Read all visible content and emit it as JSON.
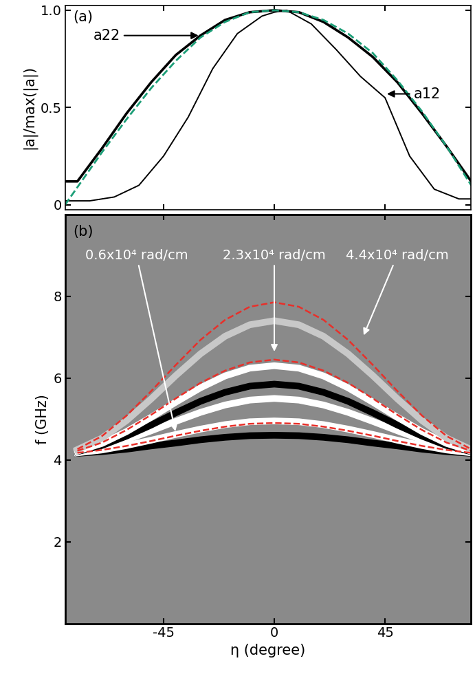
{
  "chart_data": [
    {
      "type": "line",
      "title": "(a)",
      "ylabel": "|a|/max(|a|)",
      "xlim": [
        -85,
        80
      ],
      "ylim": [
        -0.025,
        1.025
      ],
      "xticks": [
        -45,
        0,
        45
      ],
      "yticks": [
        0,
        0.5,
        1.0
      ],
      "tick_labels": "y",
      "series": [
        {
          "x": [
            -85,
            -80,
            -70,
            -60,
            -50,
            -40,
            -30,
            -20,
            -10,
            0,
            10,
            20,
            30,
            40,
            50,
            60,
            70,
            80
          ],
          "values": [
            0.12,
            0.12,
            0.29,
            0.47,
            0.63,
            0.77,
            0.87,
            0.95,
            0.99,
            1.0,
            0.99,
            0.94,
            0.86,
            0.76,
            0.63,
            0.47,
            0.3,
            0.12
          ],
          "color": "#000000",
          "line_style": "solid"
        },
        {
          "x": [
            -85,
            -75,
            -65,
            -55,
            -45,
            -35,
            -25,
            -15,
            -5,
            0,
            5,
            15,
            25,
            35,
            45,
            50,
            55,
            65,
            75,
            80
          ],
          "values": [
            0.02,
            0.02,
            0.04,
            0.1,
            0.25,
            0.45,
            0.7,
            0.88,
            0.97,
            0.99,
            1.0,
            0.93,
            0.8,
            0.66,
            0.55,
            0.4,
            0.25,
            0.08,
            0.03,
            0.03
          ],
          "color": "#000000",
          "line_style": "solid"
        },
        {
          "x": [
            -85,
            -80,
            -70,
            -60,
            -50,
            -40,
            -30,
            -20,
            -10,
            0,
            10,
            20,
            30,
            40,
            50,
            60,
            70,
            80
          ],
          "values": [
            0.0,
            0.09,
            0.27,
            0.44,
            0.6,
            0.74,
            0.86,
            0.94,
            0.99,
            1.0,
            0.99,
            0.95,
            0.88,
            0.78,
            0.64,
            0.48,
            0.3,
            0.1
          ],
          "color": "#1b9e77",
          "line_style": "dashed"
        }
      ],
      "annotations": [
        {
          "text": "a22",
          "x": -30,
          "y": 0.87,
          "text_x": -68,
          "text_y": 0.87
        },
        {
          "text": "a12",
          "x": 45,
          "y": 0.57,
          "text_x": 62,
          "text_y": 0.57
        }
      ]
    },
    {
      "type": "spectrum",
      "title": "(b)",
      "xlabel": "η (degree)",
      "ylabel": "f (GHz)",
      "xlim": [
        -85,
        80
      ],
      "ylim": [
        0,
        10
      ],
      "xticks": [
        -45,
        0,
        45
      ],
      "yticks": [
        2,
        4,
        6,
        8
      ],
      "x": [
        -80,
        -70,
        -60,
        -50,
        -40,
        -30,
        -20,
        -10,
        0,
        10,
        20,
        30,
        40,
        50,
        60,
        70,
        80
      ],
      "series": [
        {
          "type": "band",
          "color": "#000000",
          "line_style": "solid",
          "values": [
            4.16,
            4.2,
            4.26,
            4.34,
            4.41,
            4.49,
            4.55,
            4.59,
            4.6,
            4.59,
            4.55,
            4.49,
            4.41,
            4.34,
            4.26,
            4.2,
            4.16
          ]
        },
        {
          "type": "band",
          "color": "#ffffff",
          "line_style": "solid",
          "values": [
            4.17,
            4.24,
            4.35,
            4.48,
            4.62,
            4.75,
            4.86,
            4.93,
            4.95,
            4.93,
            4.86,
            4.75,
            4.62,
            4.48,
            4.35,
            4.24,
            4.17
          ]
        },
        {
          "type": "band",
          "color": "#ffffff",
          "line_style": "solid",
          "values": [
            4.19,
            4.31,
            4.49,
            4.71,
            4.94,
            5.16,
            5.34,
            5.46,
            5.5,
            5.46,
            5.34,
            5.16,
            4.94,
            4.71,
            4.49,
            4.31,
            4.19
          ]
        },
        {
          "type": "band",
          "color": "#000000",
          "line_style": "solid",
          "values": [
            4.2,
            4.35,
            4.58,
            4.85,
            5.15,
            5.43,
            5.65,
            5.8,
            5.85,
            5.8,
            5.65,
            5.43,
            5.15,
            4.85,
            4.58,
            4.35,
            4.2
          ]
        },
        {
          "type": "band",
          "color": "#ffffff",
          "line_style": "solid",
          "values": [
            4.21,
            4.4,
            4.69,
            5.04,
            5.41,
            5.76,
            6.05,
            6.24,
            6.3,
            6.24,
            6.05,
            5.76,
            5.41,
            5.04,
            4.69,
            4.4,
            4.21
          ]
        },
        {
          "type": "band",
          "color": "#c8c8c8",
          "line_style": "solid",
          "values": [
            4.25,
            4.53,
            4.96,
            5.49,
            6.06,
            6.59,
            7.02,
            7.3,
            7.4,
            7.3,
            7.02,
            6.59,
            6.06,
            5.49,
            4.96,
            4.53,
            4.25
          ]
        },
        {
          "type": "line",
          "color": "#e8302a",
          "line_style": "dashed",
          "values": [
            4.17,
            4.24,
            4.34,
            4.46,
            4.59,
            4.71,
            4.81,
            4.88,
            4.9,
            4.88,
            4.81,
            4.71,
            4.59,
            4.46,
            4.34,
            4.24,
            4.17
          ]
        },
        {
          "type": "line",
          "color": "#e8302a",
          "line_style": "dashed",
          "values": [
            4.22,
            4.42,
            4.73,
            5.1,
            5.5,
            5.88,
            6.18,
            6.38,
            6.45,
            6.38,
            6.18,
            5.88,
            5.5,
            5.1,
            4.73,
            4.42,
            4.22
          ]
        },
        {
          "type": "line",
          "color": "#e8302a",
          "line_style": "dashed",
          "values": [
            4.26,
            4.58,
            5.08,
            5.68,
            6.32,
            6.93,
            7.42,
            7.74,
            7.85,
            7.74,
            7.42,
            6.93,
            6.32,
            5.68,
            5.08,
            4.58,
            4.26
          ]
        }
      ],
      "annotations": [
        {
          "text": "0.6x10⁴ rad/cm",
          "x": -40,
          "y": 4.65,
          "text_x": -56,
          "text_y": 9.0
        },
        {
          "text": "2.3x10⁴ rad/cm",
          "x": 0,
          "y": 6.6,
          "text_x": 0,
          "text_y": 9.0
        },
        {
          "text": "4.4x10⁴ rad/cm",
          "x": 36,
          "y": 7.0,
          "text_x": 50,
          "text_y": 9.0
        }
      ]
    }
  ]
}
